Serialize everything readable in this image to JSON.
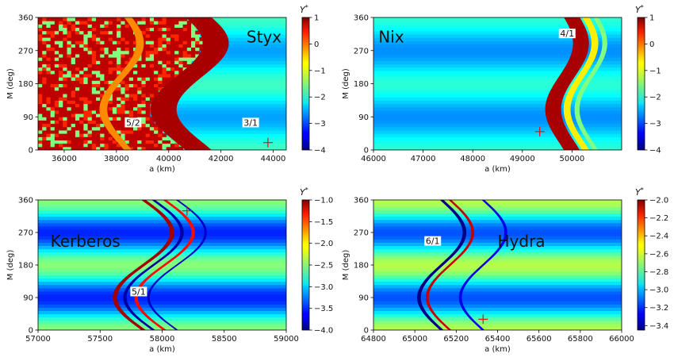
{
  "chart_data": [
    {
      "type": "heatmap",
      "title": "Styx",
      "xlabel": "a (km)",
      "ylabel": "M (deg)",
      "xlim": [
        35000,
        44500
      ],
      "ylim": [
        0,
        360
      ],
      "xticks": [
        36000,
        38000,
        40000,
        42000,
        44000
      ],
      "yticks": [
        0,
        90,
        180,
        270,
        360
      ],
      "colorbar": {
        "label": "Y*",
        "range": [
          -4,
          1
        ],
        "ticks": [
          1,
          0,
          -1,
          -2,
          -3,
          -4
        ]
      },
      "background_value": -2.2,
      "chaotic_region_value": 0.7,
      "resonance_labels": [
        {
          "text": "5/2",
          "x": 38350,
          "y": 68
        },
        {
          "text": "3/1",
          "x": 42850,
          "y": 68
        }
      ],
      "marker": {
        "x": 43800,
        "y": 20
      },
      "bands": [
        {
          "x_center": 40800,
          "amplitude": 1000,
          "phase": 200,
          "width": 500,
          "value": 0.8
        },
        {
          "x_center": 38200,
          "amplitude": 700,
          "phase": 200,
          "width": 150,
          "value": -0.3
        }
      ]
    },
    {
      "type": "heatmap",
      "title": "Nix",
      "xlabel": "a (km)",
      "ylabel": "M (deg)",
      "xlim": [
        46000,
        51000
      ],
      "ylim": [
        0,
        360
      ],
      "xticks": [
        46000,
        47000,
        48000,
        49000,
        50000
      ],
      "yticks": [
        0,
        90,
        180,
        270,
        360
      ],
      "colorbar": {
        "label": "Y*",
        "range": [
          -4,
          1
        ],
        "ticks": [
          1,
          0,
          -1,
          -2,
          -3,
          -4
        ]
      },
      "background_value": -2.3,
      "resonance_labels": [
        {
          "text": "4/1",
          "x": 49750,
          "y": 310
        }
      ],
      "marker": {
        "x": 49350,
        "y": 50
      },
      "bands": [
        {
          "x_center": 49900,
          "amplitude": 280,
          "phase": 200,
          "width": 160,
          "value": 0.8
        },
        {
          "x_center": 50180,
          "amplitude": 280,
          "phase": 200,
          "width": 70,
          "value": -0.8
        },
        {
          "x_center": 50380,
          "amplitude": 280,
          "phase": 200,
          "width": 50,
          "value": -1.5
        }
      ]
    },
    {
      "type": "heatmap",
      "title": "Kerberos",
      "xlabel": "a (km)",
      "ylabel": "M (deg)",
      "xlim": [
        57000,
        59000
      ],
      "ylim": [
        0,
        360
      ],
      "xticks": [
        57000,
        57500,
        58000,
        58500,
        59000
      ],
      "yticks": [
        0,
        90,
        180,
        270,
        360
      ],
      "colorbar": {
        "label": "Y*",
        "range": [
          -4.0,
          -1.0
        ],
        "ticks": [
          -1.0,
          -1.5,
          -2.0,
          -2.5,
          -3.0,
          -3.5,
          -4.0
        ]
      },
      "background_value": -3.0,
      "resonance_labels": [
        {
          "text": "5/1",
          "x": 57750,
          "y": 100
        }
      ],
      "marker": {
        "x": 58200,
        "y": 330
      },
      "bands": [
        {
          "x_center": 57850,
          "amplitude": 230,
          "phase": 180,
          "width": 18,
          "value": -1.1
        },
        {
          "x_center": 57930,
          "amplitude": 230,
          "phase": 180,
          "width": 14,
          "value": -3.9
        },
        {
          "x_center": 58020,
          "amplitude": 230,
          "phase": 180,
          "width": 14,
          "value": -1.4
        },
        {
          "x_center": 58120,
          "amplitude": 230,
          "phase": 180,
          "width": 10,
          "value": -3.8
        }
      ]
    },
    {
      "type": "heatmap",
      "title": "Hydra",
      "xlabel": "a (km)",
      "ylabel": "M (deg)",
      "xlim": [
        64800,
        66000
      ],
      "ylim": [
        0,
        360
      ],
      "xticks": [
        64800,
        65000,
        65200,
        65400,
        65600,
        65800,
        66000
      ],
      "yticks": [
        0,
        90,
        180,
        270,
        360
      ],
      "colorbar": {
        "label": "Y*",
        "range": [
          -3.45,
          -2.0
        ],
        "ticks": [
          -2.0,
          -2.2,
          -2.4,
          -2.6,
          -2.8,
          -3.0,
          -3.2,
          -3.4
        ]
      },
      "background_value": -2.9,
      "resonance_labels": [
        {
          "text": "6/1",
          "x": 65050,
          "y": 240
        }
      ],
      "marker": {
        "x": 65330,
        "y": 30
      },
      "bands": [
        {
          "x_center": 65130,
          "amplitude": 110,
          "phase": 180,
          "width": 9,
          "value": -3.44
        },
        {
          "x_center": 65170,
          "amplitude": 110,
          "phase": 180,
          "width": 7,
          "value": -2.1
        },
        {
          "x_center": 65330,
          "amplitude": 110,
          "phase": 180,
          "width": 7,
          "value": -3.3
        }
      ]
    }
  ]
}
